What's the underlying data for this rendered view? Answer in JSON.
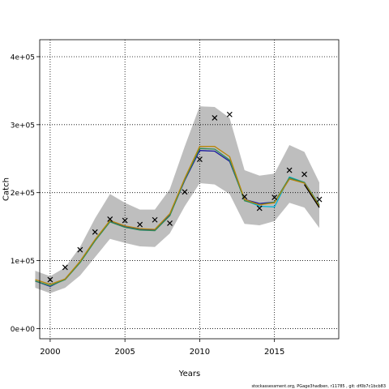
{
  "chart_data": {
    "type": "line",
    "xlabel": "Years",
    "ylabel": "Catch",
    "xlim": [
      1999.3,
      2019.3
    ],
    "ylim": [
      -15000,
      425000
    ],
    "x_ticks": [
      2000,
      2005,
      2010,
      2015
    ],
    "x_tick_labels": [
      "2000",
      "2005",
      "2010",
      "2015"
    ],
    "y_ticks": [
      0,
      100000,
      200000,
      300000,
      400000
    ],
    "y_tick_labels": [
      "0e+00",
      "1e+05",
      "2e+05",
      "3e+05",
      "4e+05"
    ],
    "grid": true,
    "band": {
      "color": "#bebebe",
      "x": [
        1999,
        2000,
        2001,
        2002,
        2003,
        2004,
        2005,
        2006,
        2007,
        2008,
        2009,
        2010,
        2011,
        2012,
        2013,
        2014,
        2015,
        2016,
        2017,
        2018
      ],
      "lower": [
        60000,
        52000,
        60000,
        78000,
        105000,
        132000,
        126000,
        121000,
        120000,
        140000,
        180000,
        214000,
        212000,
        198000,
        154000,
        152000,
        158000,
        185000,
        178000,
        148000
      ],
      "upper": [
        85000,
        77000,
        90000,
        120000,
        162000,
        198000,
        185000,
        175000,
        175000,
        205000,
        268000,
        327000,
        326000,
        310000,
        233000,
        225000,
        228000,
        270000,
        260000,
        215000
      ]
    },
    "series": [
      {
        "color": "#1a1aa0",
        "x": [
          1999,
          2000,
          2001,
          2002,
          2003,
          2004,
          2005,
          2006,
          2007,
          2008,
          2009,
          2010,
          2011,
          2012,
          2013,
          2014,
          2015,
          2016,
          2017,
          2018
        ],
        "values": [
          70000,
          62000,
          73000,
          98000,
          130000,
          158000,
          150000,
          146000,
          145000,
          167000,
          218000,
          262000,
          261000,
          246000,
          190000,
          184000,
          186000,
          220000,
          215000,
          181000
        ]
      },
      {
        "color": "#00b4d8",
        "x": [
          2013,
          2014,
          2015,
          2016,
          2017
        ],
        "values": [
          189000,
          180000,
          179000,
          223000,
          215000
        ]
      },
      {
        "color": "#2e8b57",
        "x": [
          1999,
          2000,
          2001,
          2002,
          2003,
          2004,
          2005,
          2006,
          2007,
          2008,
          2009,
          2010,
          2011,
          2012,
          2013,
          2014,
          2015,
          2016,
          2017,
          2018
        ],
        "values": [
          70000,
          63000,
          72000,
          97000,
          129000,
          157000,
          149000,
          145000,
          144000,
          166000,
          219000,
          265000,
          264000,
          248000,
          188000,
          182000,
          186000,
          222000,
          215000,
          182000
        ]
      },
      {
        "color": "#b8860b",
        "x": [
          1999,
          2000,
          2001,
          2002,
          2003,
          2004,
          2005,
          2006,
          2007,
          2008,
          2009,
          2010,
          2011,
          2012,
          2013,
          2014,
          2015,
          2016,
          2017,
          2018
        ],
        "values": [
          72000,
          65000,
          73000,
          99000,
          131000,
          159000,
          151000,
          147000,
          146000,
          169000,
          221000,
          268000,
          268000,
          253000,
          190000,
          182000,
          185000,
          220000,
          214000,
          180000
        ]
      },
      {
        "color": "#000000",
        "x": [
          2017,
          2018
        ],
        "values": [
          212000,
          178000
        ]
      }
    ],
    "points": {
      "marker": "x",
      "x": [
        2000,
        2001,
        2002,
        2003,
        2004,
        2005,
        2006,
        2007,
        2008,
        2009,
        2010,
        2011,
        2012,
        2013,
        2014,
        2015,
        2016,
        2017,
        2018
      ],
      "values": [
        72000,
        90000,
        116000,
        142000,
        161000,
        159000,
        153000,
        160000,
        155000,
        201000,
        249000,
        310000,
        315000,
        194000,
        177000,
        193000,
        233000,
        227000,
        190000
      ]
    }
  },
  "footer_text": "stockassessment.org, PGage3hadben, r11785 , git: df0b7c1bcb83"
}
